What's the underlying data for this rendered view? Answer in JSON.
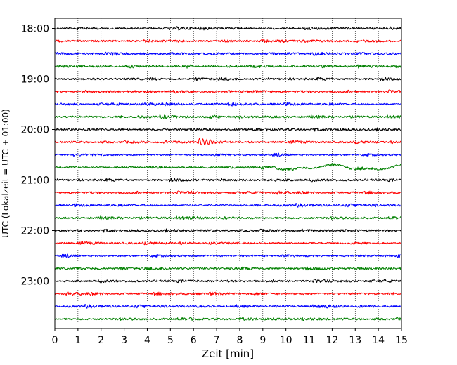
{
  "chart_data": {
    "type": "line",
    "title": "",
    "xlabel": "Zeit  [min]",
    "ylabel": "UTC (Lokalzeit = UTC + 01:00)",
    "xlim": [
      0,
      15
    ],
    "x_ticks": [
      "0",
      "1",
      "2",
      "3",
      "4",
      "5",
      "6",
      "7",
      "8",
      "9",
      "10",
      "11",
      "12",
      "13",
      "14",
      "15"
    ],
    "y_tick_labels": [
      "18:00",
      "19:00",
      "20:00",
      "21:00",
      "22:00",
      "23:00"
    ],
    "grid": "vertical dotted",
    "trace_interval_minutes": 15,
    "trace_colors": [
      "#000000",
      "#ff0000",
      "#0000ff",
      "#008000"
    ],
    "traces": [
      {
        "start": "18:00",
        "color": "#000000"
      },
      {
        "start": "18:15",
        "color": "#ff0000"
      },
      {
        "start": "18:30",
        "color": "#0000ff"
      },
      {
        "start": "18:45",
        "color": "#008000"
      },
      {
        "start": "19:00",
        "color": "#000000"
      },
      {
        "start": "19:15",
        "color": "#ff0000"
      },
      {
        "start": "19:30",
        "color": "#0000ff"
      },
      {
        "start": "19:45",
        "color": "#008000"
      },
      {
        "start": "20:00",
        "color": "#000000"
      },
      {
        "start": "20:15",
        "color": "#ff0000",
        "event_minute": 6.3
      },
      {
        "start": "20:30",
        "color": "#0000ff"
      },
      {
        "start": "20:45",
        "color": "#008000",
        "drift_from_minute": 9.5
      },
      {
        "start": "21:00",
        "color": "#000000"
      },
      {
        "start": "21:15",
        "color": "#ff0000"
      },
      {
        "start": "21:30",
        "color": "#0000ff"
      },
      {
        "start": "21:45",
        "color": "#008000"
      },
      {
        "start": "22:00",
        "color": "#000000"
      },
      {
        "start": "22:15",
        "color": "#ff0000"
      },
      {
        "start": "22:30",
        "color": "#0000ff"
      },
      {
        "start": "22:45",
        "color": "#008000"
      },
      {
        "start": "23:00",
        "color": "#000000"
      },
      {
        "start": "23:15",
        "color": "#ff0000"
      },
      {
        "start": "23:30",
        "color": "#0000ff"
      },
      {
        "start": "23:45",
        "color": "#008000"
      }
    ]
  }
}
